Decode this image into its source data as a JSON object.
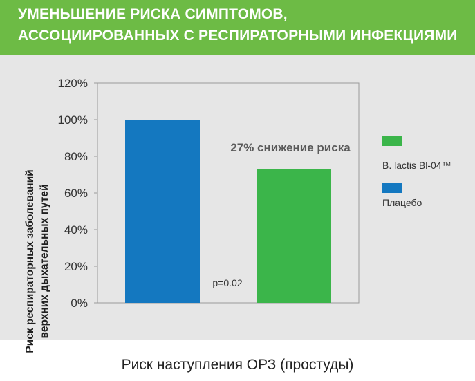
{
  "header": {
    "title_line_1": "УМЕНЬШЕНИЕ РИСКА СИМПТОМОВ,",
    "title_line_2": "АССОЦИИРОВАННЫХ С РЕСПИРАТОРНЫМИ ИНФЕКЦИЯМИ",
    "background_color": "#6dbb45"
  },
  "chart_data": {
    "type": "bar",
    "categories": [
      "Плацебо",
      "B. lactis Bl-04™"
    ],
    "values": [
      100,
      73
    ],
    "colors": [
      "#1478c0",
      "#3bb54a"
    ],
    "ylabel_lines": [
      "Риск респираторных заболеваний",
      "верхних дыхательных путей"
    ],
    "xlabel": "Риск наступления ОРЗ (простуды)",
    "ylim": [
      0,
      120
    ],
    "yticks": [
      0,
      20,
      40,
      60,
      80,
      100,
      120
    ],
    "ytick_labels": [
      "0%",
      "20%",
      "40%",
      "60%",
      "80%",
      "100%",
      "120%"
    ],
    "annotations": {
      "reduction": "27% снижение риска",
      "p_value": "p=0.02"
    },
    "legend": {
      "placement": "right",
      "entries": [
        {
          "label": "B. lactis Bl-04™",
          "color": "#3bb54a"
        },
        {
          "label": "Плацебо",
          "color": "#1478c0"
        }
      ]
    },
    "grid": false
  }
}
